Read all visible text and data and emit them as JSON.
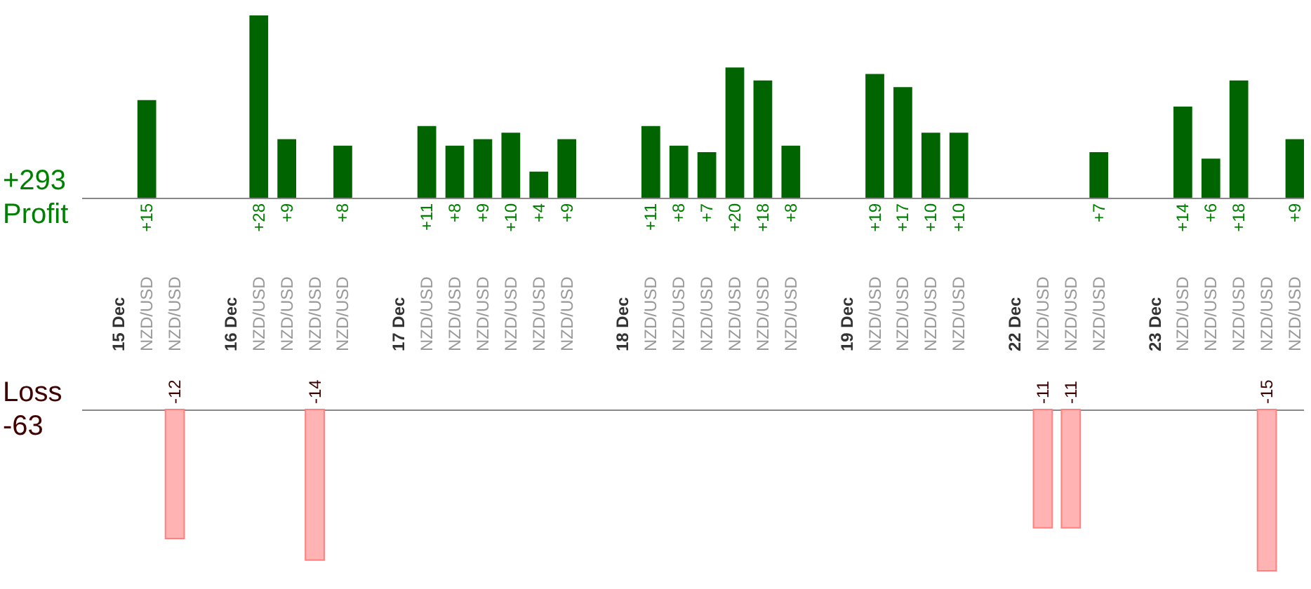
{
  "chart_data": [
    {
      "type": "bar",
      "categories": [
        null,
        "15 Dec",
        "NZD/USD",
        "NZD/USD",
        null,
        "16 Dec",
        "NZD/USD",
        "NZD/USD",
        "NZD/USD",
        "NZD/USD",
        null,
        "17 Dec",
        "NZD/USD",
        "NZD/USD",
        "NZD/USD",
        "NZD/USD",
        "NZD/USD",
        "NZD/USD",
        null,
        "18 Dec",
        "NZD/USD",
        "NZD/USD",
        "NZD/USD",
        "NZD/USD",
        "NZD/USD",
        "NZD/USD",
        null,
        "19 Dec",
        "NZD/USD",
        "NZD/USD",
        "NZD/USD",
        "NZD/USD",
        null,
        "22 Dec",
        "NZD/USD",
        "NZD/USD",
        "NZD/USD",
        null,
        "23 Dec",
        "NZD/USD",
        "NZD/USD",
        "NZD/USD",
        "NZD/USD",
        "NZD/USD"
      ],
      "series": [
        {
          "name": "Profit",
          "color": "#006400",
          "values": [
            null,
            null,
            15,
            null,
            null,
            null,
            28,
            9,
            null,
            8,
            null,
            null,
            11,
            8,
            9,
            10,
            4,
            9,
            null,
            null,
            11,
            8,
            7,
            20,
            18,
            8,
            null,
            null,
            19,
            17,
            10,
            10,
            null,
            null,
            null,
            null,
            7,
            null,
            null,
            14,
            6,
            18,
            null,
            9
          ],
          "value_labels": [
            null,
            null,
            "+15",
            null,
            null,
            null,
            "+28",
            "+9",
            null,
            "+8",
            null,
            null,
            "+11",
            "+8",
            "+9",
            "+10",
            "+4",
            "+9",
            null,
            null,
            "+11",
            "+8",
            "+7",
            "+20",
            "+18",
            "+8",
            null,
            null,
            "+19",
            "+17",
            "+10",
            "+10",
            null,
            null,
            null,
            null,
            "+7",
            null,
            null,
            "+14",
            "+6",
            "+18",
            null,
            "+9"
          ]
        }
      ],
      "annotations": [
        "+293"
      ],
      "tick_labels": "x"
    },
    {
      "type": "bar",
      "categories": [
        null,
        null,
        null,
        null,
        null,
        null,
        null,
        null,
        null,
        null,
        null,
        null,
        null,
        null,
        null,
        null,
        null,
        null,
        null,
        null,
        null,
        null,
        null,
        null,
        null,
        null,
        null,
        null,
        null,
        null,
        null,
        null,
        null,
        null,
        null,
        null,
        null,
        null,
        null,
        null,
        null,
        null,
        null,
        null
      ],
      "series": [
        {
          "name": "Loss",
          "color": "#ffb3b3",
          "values": [
            null,
            null,
            null,
            -12,
            null,
            null,
            null,
            null,
            -14,
            null,
            null,
            null,
            null,
            null,
            null,
            null,
            null,
            null,
            null,
            null,
            null,
            null,
            null,
            null,
            null,
            null,
            null,
            null,
            null,
            null,
            null,
            null,
            null,
            null,
            -11,
            -11,
            null,
            null,
            null,
            null,
            null,
            null,
            -15,
            null
          ]
        }
      ],
      "data_labels": true,
      "annotations": [
        "-63"
      ],
      "tick_labels": false
    }
  ]
}
